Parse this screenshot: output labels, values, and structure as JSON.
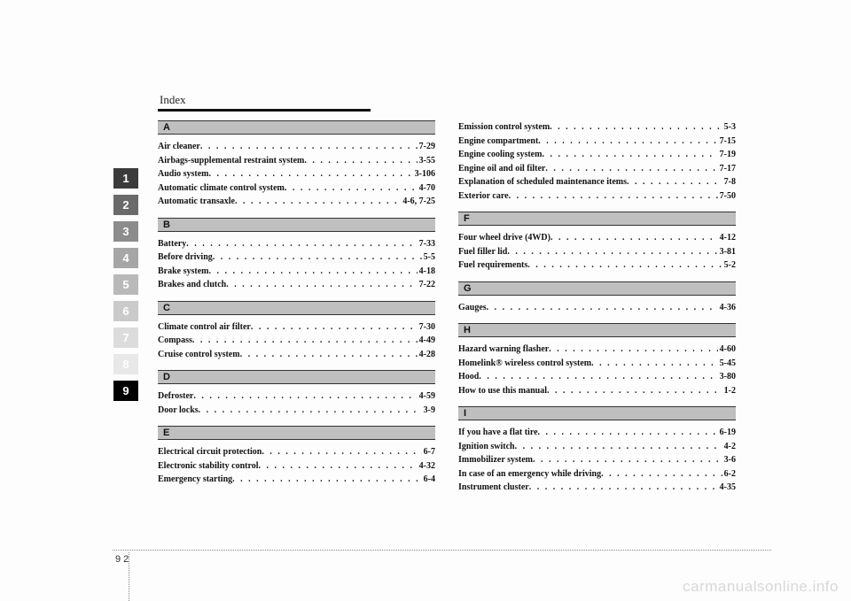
{
  "header": {
    "title": "Index"
  },
  "tabs": [
    {
      "n": "1",
      "bg": "#3b3b3b",
      "fg": "#ffffff"
    },
    {
      "n": "2",
      "bg": "#6a6a6a",
      "fg": "#ffffff"
    },
    {
      "n": "3",
      "bg": "#8c8c8c",
      "fg": "#ffffff"
    },
    {
      "n": "4",
      "bg": "#a6a6a6",
      "fg": "#ffffff"
    },
    {
      "n": "5",
      "bg": "#b9b9b9",
      "fg": "#ffffff"
    },
    {
      "n": "6",
      "bg": "#cacaca",
      "fg": "#ffffff"
    },
    {
      "n": "7",
      "bg": "#dcdcdc",
      "fg": "#ffffff"
    },
    {
      "n": "8",
      "bg": "#e8e8e8",
      "fg": "#ffffff"
    },
    {
      "n": "9",
      "bg": "#000000",
      "fg": "#ffffff"
    }
  ],
  "left_sections": [
    {
      "letter": "A",
      "entries": [
        {
          "label": "Air cleaner",
          "page": "7-29"
        },
        {
          "label": "Airbags-supplemental restraint system",
          "page": "3-55"
        },
        {
          "label": "Audio system",
          "page": "3-106"
        },
        {
          "label": "Automatic climate control system",
          "page": "4-70"
        },
        {
          "label": "Automatic transaxle",
          "page": "4-6, 7-25"
        }
      ]
    },
    {
      "letter": "B",
      "entries": [
        {
          "label": "Battery",
          "page": "7-33"
        },
        {
          "label": "Before driving",
          "page": "5-5"
        },
        {
          "label": "Brake system",
          "page": "4-18"
        },
        {
          "label": "Brakes and clutch",
          "page": "7-22"
        }
      ]
    },
    {
      "letter": "C",
      "entries": [
        {
          "label": "Climate control air filter",
          "page": "7-30"
        },
        {
          "label": "Compass",
          "page": "4-49"
        },
        {
          "label": "Cruise control system",
          "page": "4-28"
        }
      ]
    },
    {
      "letter": "D",
      "entries": [
        {
          "label": "Defroster",
          "page": "4-59"
        },
        {
          "label": "Door locks",
          "page": "3-9"
        }
      ]
    },
    {
      "letter": "E",
      "entries": [
        {
          "label": "Electrical circuit protection",
          "page": "6-7"
        },
        {
          "label": "Electronic stability control",
          "page": "4-32"
        },
        {
          "label": "Emergency starting",
          "page": "6-4"
        }
      ]
    }
  ],
  "right_top_entries": [
    {
      "label": "Emission control system",
      "page": "5-3"
    },
    {
      "label": "Engine compartment",
      "page": "7-15"
    },
    {
      "label": "Engine cooling system",
      "page": "7-19"
    },
    {
      "label": "Engine oil and oil filter",
      "page": "7-17"
    },
    {
      "label": "Explanation of scheduled maintenance items",
      "page": "7-8"
    },
    {
      "label": "Exterior care",
      "page": "7-50"
    }
  ],
  "right_sections": [
    {
      "letter": "F",
      "entries": [
        {
          "label": "Four wheel drive (4WD)",
          "page": "4-12"
        },
        {
          "label": "Fuel filler lid",
          "page": "3-81"
        },
        {
          "label": "Fuel requirements",
          "page": "5-2"
        }
      ]
    },
    {
      "letter": "G",
      "entries": [
        {
          "label": "Gauges",
          "page": "4-36"
        }
      ]
    },
    {
      "letter": "H",
      "entries": [
        {
          "label": "Hazard warning flasher",
          "page": "4-60"
        },
        {
          "label": "Homelink® wireless control system",
          "page": "5-45"
        },
        {
          "label": "Hood",
          "page": "3-80"
        },
        {
          "label": "How to use this manual",
          "page": "1-2"
        }
      ]
    },
    {
      "letter": "I",
      "entries": [
        {
          "label": "If you have a flat tire",
          "page": "6-19"
        },
        {
          "label": "Ignition switch",
          "page": "4-2"
        },
        {
          "label": "Immobilizer system",
          "page": "3-6"
        },
        {
          "label": "In case of an emergency while driving",
          "page": "6-2"
        },
        {
          "label": "Instrument cluster",
          "page": "4-35"
        }
      ]
    }
  ],
  "footer": {
    "chapter": "9",
    "page": "2"
  },
  "watermark": "carmanualsonline.info"
}
